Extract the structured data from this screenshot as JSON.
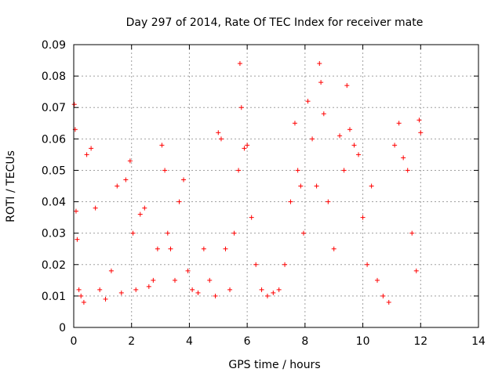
{
  "chart_data": {
    "type": "scatter",
    "title": "Day 297 of 2014, Rate Of TEC Index for receiver mate",
    "xlabel": "GPS time / hours",
    "ylabel": "ROTI / TECUs",
    "xlim": [
      0,
      14
    ],
    "ylim": [
      0,
      0.09
    ],
    "xticks": [
      "0",
      "2",
      "4",
      "6",
      "8",
      "10",
      "12",
      "14"
    ],
    "yticks": [
      "0",
      "0.01",
      "0.02",
      "0.03",
      "0.04",
      "0.05",
      "0.06",
      "0.07",
      "0.08",
      "0.09"
    ],
    "grid": true,
    "marker": "+",
    "color": "#ff0000",
    "series": [
      {
        "name": "ROTI",
        "x": [
          0.02,
          0.05,
          0.08,
          0.12,
          0.18,
          0.25,
          0.35,
          0.45,
          0.6,
          0.75,
          0.9,
          1.1,
          1.3,
          1.5,
          1.65,
          1.8,
          1.95,
          2.05,
          2.15,
          2.3,
          2.45,
          2.6,
          2.75,
          2.9,
          3.05,
          3.15,
          3.25,
          3.35,
          3.5,
          3.65,
          3.8,
          3.95,
          4.1,
          4.3,
          4.5,
          4.7,
          4.9,
          5.0,
          5.1,
          5.25,
          5.4,
          5.55,
          5.7,
          5.75,
          5.8,
          5.9,
          6.0,
          6.15,
          6.3,
          6.5,
          6.7,
          6.9,
          7.1,
          7.3,
          7.5,
          7.65,
          7.75,
          7.85,
          7.95,
          8.1,
          8.25,
          8.4,
          8.5,
          8.55,
          8.65,
          8.8,
          9.0,
          9.2,
          9.35,
          9.45,
          9.55,
          9.7,
          9.85,
          10.0,
          10.15,
          10.3,
          10.5,
          10.7,
          10.9,
          11.1,
          11.25,
          11.4,
          11.55,
          11.7,
          11.85,
          11.95,
          12.0
        ],
        "y": [
          0.071,
          0.063,
          0.037,
          0.028,
          0.012,
          0.01,
          0.008,
          0.055,
          0.057,
          0.038,
          0.012,
          0.009,
          0.018,
          0.045,
          0.011,
          0.047,
          0.053,
          0.03,
          0.012,
          0.036,
          0.038,
          0.013,
          0.015,
          0.025,
          0.058,
          0.05,
          0.03,
          0.025,
          0.015,
          0.04,
          0.047,
          0.018,
          0.012,
          0.011,
          0.025,
          0.015,
          0.01,
          0.062,
          0.06,
          0.025,
          0.012,
          0.03,
          0.05,
          0.084,
          0.07,
          0.057,
          0.058,
          0.035,
          0.02,
          0.012,
          0.01,
          0.011,
          0.012,
          0.02,
          0.04,
          0.065,
          0.05,
          0.045,
          0.03,
          0.072,
          0.06,
          0.045,
          0.084,
          0.078,
          0.068,
          0.04,
          0.025,
          0.061,
          0.05,
          0.077,
          0.063,
          0.058,
          0.055,
          0.035,
          0.02,
          0.045,
          0.015,
          0.01,
          0.008,
          0.058,
          0.065,
          0.054,
          0.05,
          0.03,
          0.018,
          0.066,
          0.062
        ]
      }
    ]
  }
}
